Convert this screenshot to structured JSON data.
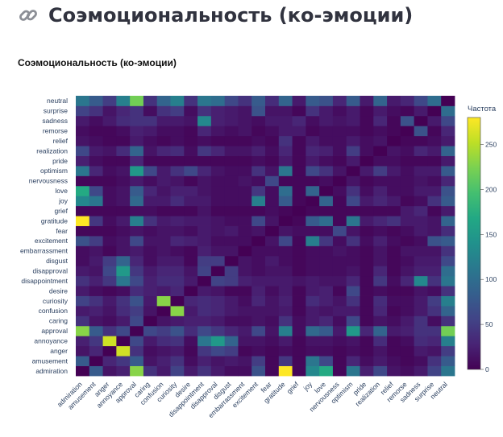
{
  "page": {
    "title": "Соэмоциональность (ко-эмоции)",
    "icon": "link-icon"
  },
  "chart_data": {
    "type": "heatmap",
    "title": "Соэмоциональность (ко-эмоции)",
    "xlabel": "",
    "ylabel": "",
    "colorbar": {
      "title": "Частота",
      "min": 0,
      "max": 280,
      "ticks": [
        0,
        50,
        100,
        150,
        200,
        250
      ],
      "colorscale": "viridis"
    },
    "labels": [
      "admiration",
      "amusement",
      "anger",
      "annoyance",
      "approval",
      "caring",
      "confusion",
      "curiosity",
      "desire",
      "disappointment",
      "disapproval",
      "disgust",
      "embarrassment",
      "excitement",
      "fear",
      "gratitude",
      "grief",
      "joy",
      "love",
      "nervousness",
      "optimism",
      "pride",
      "realization",
      "relief",
      "remorse",
      "sadness",
      "surprise",
      "neutral"
    ],
    "matrix": [
      [
        0,
        80,
        15,
        25,
        230,
        40,
        20,
        55,
        20,
        40,
        20,
        10,
        10,
        70,
        5,
        280,
        5,
        130,
        170,
        5,
        110,
        25,
        60,
        15,
        10,
        20,
        55,
        110
      ],
      [
        80,
        0,
        30,
        45,
        80,
        15,
        25,
        40,
        10,
        25,
        15,
        20,
        15,
        50,
        5,
        45,
        5,
        110,
        60,
        5,
        30,
        10,
        20,
        10,
        5,
        10,
        40,
        80
      ],
      [
        15,
        30,
        0,
        260,
        40,
        10,
        15,
        20,
        5,
        45,
        60,
        50,
        5,
        10,
        5,
        10,
        5,
        10,
        10,
        5,
        10,
        5,
        15,
        5,
        5,
        20,
        15,
        50
      ],
      [
        25,
        45,
        260,
        0,
        60,
        20,
        35,
        40,
        10,
        110,
        150,
        90,
        15,
        15,
        10,
        20,
        5,
        15,
        15,
        10,
        15,
        5,
        35,
        5,
        10,
        35,
        30,
        120
      ],
      [
        230,
        80,
        40,
        60,
        0,
        60,
        50,
        70,
        35,
        60,
        45,
        30,
        20,
        60,
        15,
        120,
        10,
        95,
        80,
        20,
        150,
        30,
        90,
        20,
        25,
        40,
        40,
        220
      ],
      [
        40,
        15,
        10,
        20,
        60,
        0,
        15,
        20,
        25,
        25,
        20,
        10,
        10,
        15,
        10,
        40,
        10,
        20,
        30,
        10,
        60,
        5,
        15,
        10,
        20,
        40,
        10,
        40
      ],
      [
        20,
        25,
        15,
        35,
        50,
        15,
        0,
        230,
        20,
        35,
        30,
        20,
        15,
        15,
        15,
        20,
        5,
        20,
        15,
        20,
        20,
        5,
        30,
        5,
        10,
        20,
        40,
        90
      ],
      [
        55,
        40,
        20,
        40,
        70,
        20,
        230,
        0,
        30,
        35,
        30,
        20,
        10,
        30,
        15,
        25,
        5,
        35,
        25,
        15,
        40,
        5,
        35,
        10,
        10,
        20,
        50,
        120
      ],
      [
        20,
        10,
        5,
        10,
        35,
        25,
        20,
        30,
        0,
        20,
        15,
        5,
        5,
        25,
        10,
        20,
        5,
        20,
        25,
        5,
        60,
        5,
        10,
        5,
        5,
        15,
        10,
        40
      ],
      [
        40,
        25,
        45,
        110,
        60,
        25,
        35,
        35,
        20,
        0,
        55,
        50,
        25,
        20,
        20,
        20,
        15,
        20,
        15,
        15,
        30,
        5,
        45,
        10,
        30,
        130,
        40,
        110
      ],
      [
        20,
        15,
        60,
        150,
        45,
        20,
        30,
        30,
        15,
        55,
        0,
        50,
        15,
        10,
        15,
        15,
        5,
        10,
        10,
        10,
        15,
        5,
        30,
        5,
        15,
        25,
        25,
        100
      ],
      [
        10,
        20,
        50,
        90,
        30,
        10,
        20,
        20,
        5,
        50,
        50,
        0,
        15,
        10,
        20,
        10,
        5,
        10,
        10,
        10,
        10,
        5,
        15,
        5,
        10,
        20,
        20,
        60
      ],
      [
        10,
        15,
        5,
        15,
        20,
        10,
        15,
        10,
        5,
        25,
        15,
        15,
        0,
        10,
        10,
        10,
        5,
        10,
        10,
        15,
        10,
        5,
        15,
        5,
        15,
        15,
        15,
        40
      ],
      [
        70,
        50,
        10,
        15,
        60,
        15,
        15,
        30,
        25,
        20,
        10,
        10,
        10,
        0,
        15,
        60,
        5,
        120,
        45,
        10,
        40,
        10,
        25,
        10,
        5,
        10,
        70,
        80
      ],
      [
        5,
        5,
        5,
        10,
        15,
        10,
        15,
        15,
        10,
        20,
        15,
        20,
        10,
        15,
        0,
        15,
        10,
        10,
        10,
        60,
        15,
        5,
        10,
        5,
        10,
        20,
        15,
        35
      ],
      [
        280,
        45,
        10,
        20,
        120,
        40,
        20,
        25,
        20,
        20,
        15,
        10,
        10,
        60,
        15,
        0,
        5,
        80,
        100,
        5,
        110,
        20,
        30,
        40,
        20,
        20,
        15,
        90
      ],
      [
        5,
        5,
        5,
        5,
        10,
        10,
        5,
        5,
        5,
        15,
        5,
        5,
        5,
        5,
        10,
        5,
        0,
        5,
        5,
        5,
        5,
        5,
        5,
        5,
        20,
        30,
        5,
        20
      ],
      [
        130,
        110,
        10,
        15,
        95,
        20,
        20,
        35,
        20,
        20,
        10,
        10,
        10,
        120,
        10,
        80,
        5,
        0,
        90,
        5,
        60,
        20,
        30,
        20,
        5,
        10,
        40,
        80
      ],
      [
        170,
        60,
        10,
        15,
        80,
        30,
        15,
        25,
        25,
        15,
        10,
        10,
        10,
        45,
        10,
        100,
        5,
        90,
        0,
        10,
        40,
        10,
        25,
        10,
        10,
        20,
        20,
        70
      ],
      [
        5,
        5,
        5,
        10,
        20,
        10,
        20,
        15,
        5,
        15,
        10,
        10,
        15,
        10,
        60,
        5,
        5,
        5,
        10,
        0,
        15,
        5,
        10,
        10,
        10,
        15,
        10,
        30
      ],
      [
        110,
        30,
        10,
        15,
        150,
        60,
        20,
        40,
        60,
        30,
        15,
        10,
        10,
        40,
        15,
        110,
        5,
        60,
        40,
        15,
        0,
        20,
        50,
        20,
        10,
        20,
        20,
        80
      ],
      [
        25,
        10,
        5,
        5,
        30,
        5,
        5,
        5,
        5,
        5,
        5,
        5,
        5,
        10,
        5,
        20,
        5,
        20,
        10,
        5,
        20,
        0,
        10,
        10,
        5,
        5,
        5,
        20
      ],
      [
        60,
        20,
        15,
        35,
        90,
        15,
        30,
        35,
        10,
        45,
        30,
        15,
        15,
        25,
        10,
        30,
        5,
        30,
        25,
        10,
        50,
        10,
        0,
        15,
        10,
        30,
        20,
        90
      ],
      [
        15,
        10,
        5,
        5,
        20,
        10,
        5,
        10,
        5,
        10,
        5,
        5,
        5,
        10,
        5,
        40,
        5,
        20,
        10,
        10,
        20,
        10,
        15,
        0,
        5,
        5,
        10,
        20
      ],
      [
        10,
        5,
        5,
        10,
        25,
        20,
        10,
        10,
        5,
        30,
        15,
        10,
        15,
        5,
        10,
        20,
        20,
        5,
        10,
        10,
        10,
        5,
        10,
        5,
        0,
        70,
        5,
        30
      ],
      [
        20,
        10,
        20,
        35,
        40,
        40,
        20,
        20,
        15,
        130,
        25,
        20,
        15,
        10,
        20,
        20,
        30,
        10,
        20,
        15,
        20,
        5,
        30,
        5,
        70,
        0,
        20,
        60
      ],
      [
        55,
        40,
        15,
        30,
        40,
        10,
        40,
        50,
        10,
        40,
        25,
        20,
        15,
        70,
        15,
        15,
        5,
        40,
        20,
        10,
        20,
        5,
        20,
        10,
        5,
        20,
        0,
        100
      ],
      [
        110,
        80,
        50,
        120,
        220,
        40,
        90,
        120,
        40,
        110,
        100,
        60,
        40,
        80,
        35,
        90,
        20,
        80,
        70,
        30,
        80,
        20,
        90,
        20,
        30,
        60,
        100,
        0
      ]
    ]
  }
}
